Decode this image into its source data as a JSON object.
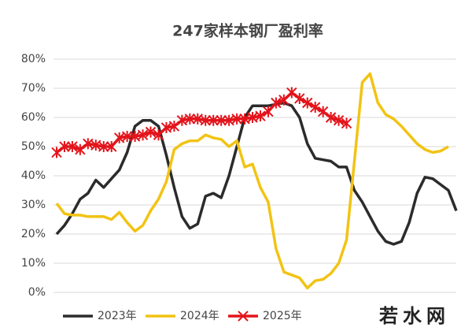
{
  "chart_data": {
    "type": "line",
    "title": "247家样本钢厂盈利率",
    "watermark": "若水网",
    "categories": [
      null,
      null,
      null,
      null,
      null,
      null,
      null,
      null,
      null,
      null,
      null,
      null,
      null,
      null,
      null,
      null,
      null,
      null,
      null,
      null,
      null,
      null,
      null,
      null,
      null,
      null,
      null,
      null,
      null,
      null,
      null,
      null,
      null,
      null,
      null,
      null,
      null,
      null,
      null,
      null,
      null,
      null,
      null,
      null,
      null,
      null,
      null,
      null,
      null,
      null,
      null,
      null
    ],
    "ylim": [
      0,
      80
    ],
    "yticks": [
      {
        "value": 0,
        "label": "0%"
      },
      {
        "value": 10,
        "label": "10%"
      },
      {
        "value": 20,
        "label": "20%"
      },
      {
        "value": 30,
        "label": "30%"
      },
      {
        "value": 40,
        "label": "40%"
      },
      {
        "value": 50,
        "label": "50%"
      },
      {
        "value": 60,
        "label": "60%"
      },
      {
        "value": 70,
        "label": "70%"
      },
      {
        "value": 80,
        "label": "80%"
      }
    ],
    "grid": true,
    "legend": "bottom",
    "series": [
      {
        "name": "2023年",
        "color": "#2b2b2b",
        "marker": false,
        "values": [
          20,
          23,
          27,
          32,
          34,
          38.5,
          36,
          39,
          42,
          48,
          57,
          59,
          59,
          57,
          47,
          36,
          26,
          22,
          23.5,
          33,
          34,
          32.5,
          40,
          50,
          60,
          64,
          64,
          64,
          64.5,
          65,
          64,
          60,
          51,
          46,
          45.5,
          45,
          43,
          43,
          35,
          31,
          26,
          21,
          17.5,
          16.5,
          17.5,
          24,
          34,
          39.5,
          39,
          37,
          35,
          28
        ]
      },
      {
        "name": "2024年",
        "color": "#f2c314",
        "marker": false,
        "values": [
          30.5,
          27,
          26.5,
          26.5,
          26,
          26,
          26,
          25,
          27.5,
          24,
          21,
          23,
          28,
          32,
          38,
          49,
          51,
          52,
          52,
          54,
          53,
          52.5,
          50,
          52,
          43,
          44,
          36,
          31,
          15,
          7,
          6,
          5,
          1.5,
          4,
          4.5,
          6.5,
          10,
          18,
          45,
          72,
          75,
          65,
          61,
          59.5,
          57,
          54,
          51,
          49,
          48,
          48.5,
          50,
          null
        ]
      },
      {
        "name": "2025年",
        "color": "#e3141b",
        "marker": true,
        "values": [
          48,
          50,
          50,
          49,
          51,
          50.5,
          50,
          50,
          53,
          53.5,
          53.5,
          54,
          55,
          54,
          56.5,
          57,
          59,
          59.5,
          59.5,
          59,
          59,
          59,
          59,
          59.5,
          59.5,
          60,
          60.5,
          62,
          65,
          66,
          68.5,
          66.5,
          65,
          63.5,
          62,
          60,
          59,
          58,
          null,
          null,
          null,
          null,
          null,
          null,
          null,
          null,
          null,
          null,
          null,
          null,
          null,
          null
        ]
      }
    ]
  }
}
